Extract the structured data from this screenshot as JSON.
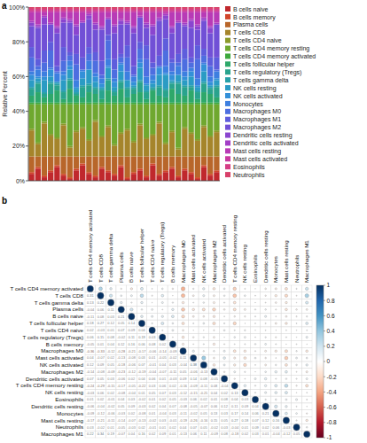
{
  "chart_data": [
    {
      "type": "bar",
      "title": "a",
      "stacked": true,
      "legend": "right",
      "y_label": "Relative Percent",
      "categories": [
        null,
        null,
        null,
        null,
        null,
        null,
        null,
        null,
        null,
        null,
        null,
        null,
        null,
        null,
        null,
        null,
        null,
        null,
        null,
        null,
        null,
        null,
        null,
        null,
        null,
        null,
        null,
        null,
        null,
        null
      ],
      "ylim": [
        0,
        100
      ],
      "yticks": [
        {
          "value": 0,
          "label": "0%"
        },
        {
          "value": 20,
          "label": "20%"
        },
        {
          "value": 40,
          "label": "40%"
        },
        {
          "value": 60,
          "label": "60%"
        },
        {
          "value": 80,
          "label": "80%"
        },
        {
          "value": 100,
          "label": "100%"
        }
      ],
      "series": [
        {
          "name": "B cells naive",
          "color": "#c0282d",
          "values": [
            4,
            7,
            2,
            5,
            8,
            3,
            1,
            6,
            9,
            4,
            2,
            7,
            5,
            3,
            8,
            1,
            4,
            6,
            2,
            9,
            3,
            5,
            7,
            2,
            6,
            4,
            1,
            8,
            3,
            5
          ]
        },
        {
          "name": "B cells memory",
          "color": "#d1452b",
          "values": [
            1,
            1,
            1,
            1,
            1,
            1,
            1,
            1,
            1,
            1,
            1,
            1,
            1,
            1,
            1,
            1,
            1,
            1,
            1,
            1,
            1,
            1,
            1,
            1,
            1,
            1,
            1,
            1,
            1,
            1
          ]
        },
        {
          "name": "Plasma cells",
          "color": "#b8662a",
          "values": [
            9,
            6,
            11,
            8,
            5,
            10,
            12,
            7,
            4,
            9,
            11,
            6,
            8,
            10,
            5,
            12,
            9,
            7,
            11,
            4,
            10,
            8,
            6,
            11,
            7,
            9,
            12,
            5,
            10,
            8
          ]
        },
        {
          "name": "T cells CD8",
          "color": "#a5852b",
          "values": [
            15,
            7,
            19,
            12,
            10,
            18,
            5,
            14,
            16,
            9,
            20,
            11,
            17,
            6,
            13,
            15,
            8,
            18,
            10,
            12,
            19,
            7,
            14,
            4,
            16,
            13,
            9,
            17,
            11,
            14
          ]
        },
        {
          "name": "T cells CD4 naive",
          "color": "#8b9a2a",
          "values": [
            1,
            1,
            1,
            1,
            1,
            1,
            1,
            1,
            1,
            1,
            1,
            1,
            1,
            1,
            1,
            1,
            1,
            1,
            1,
            1,
            1,
            1,
            1,
            1,
            1,
            1,
            1,
            1,
            1,
            1
          ]
        },
        {
          "name": "T cells CD4 memory resting",
          "color": "#6fa82f",
          "values": [
            14,
            22,
            10,
            17,
            19,
            11,
            24,
            15,
            13,
            20,
            9,
            18,
            12,
            23,
            16,
            14,
            21,
            11,
            19,
            17,
            10,
            22,
            15,
            25,
            13,
            16,
            20,
            12,
            18,
            15
          ]
        },
        {
          "name": "T cells CD4 memory activated",
          "color": "#3da83c",
          "values": [
            1,
            1,
            1,
            1,
            1,
            1,
            1,
            1,
            1,
            1,
            1,
            1,
            1,
            1,
            1,
            1,
            1,
            1,
            1,
            1,
            1,
            1,
            1,
            1,
            1,
            1,
            1,
            1,
            1,
            1
          ]
        },
        {
          "name": "T cells follicular helper",
          "color": "#2ea86a",
          "values": [
            4,
            6,
            3,
            5,
            7,
            2,
            8,
            4,
            3,
            6,
            5,
            2,
            7,
            4,
            8,
            3,
            5,
            6,
            2,
            7,
            4,
            3,
            8,
            5,
            4,
            7,
            2,
            6,
            5,
            3
          ]
        },
        {
          "name": "T cells regulatory (Tregs)",
          "color": "#29a38d",
          "values": [
            4,
            5,
            2,
            6,
            3,
            4,
            5,
            1,
            6,
            4,
            3,
            5,
            6,
            2,
            4,
            5,
            3,
            6,
            4,
            1,
            5,
            4,
            3,
            6,
            5,
            2,
            4,
            5,
            3,
            6
          ]
        },
        {
          "name": "T cells gamma delta",
          "color": "#27a0a8",
          "values": [
            1,
            1,
            1,
            1,
            1,
            1,
            1,
            1,
            1,
            1,
            1,
            1,
            1,
            1,
            1,
            1,
            1,
            1,
            1,
            1,
            1,
            1,
            1,
            1,
            1,
            1,
            1,
            1,
            1,
            1
          ]
        },
        {
          "name": "NK cells resting",
          "color": "#2a9bc4",
          "values": [
            4,
            2,
            7,
            3,
            1,
            6,
            5,
            2,
            4,
            8,
            3,
            1,
            6,
            2,
            5,
            4,
            1,
            7,
            3,
            2,
            6,
            8,
            1,
            4,
            3,
            5,
            2,
            6,
            1,
            3
          ]
        },
        {
          "name": "NK cells activated",
          "color": "#3390d8",
          "values": [
            3,
            1,
            2,
            4,
            0,
            3,
            2,
            1,
            4,
            0,
            3,
            2,
            1,
            3,
            4,
            0,
            2,
            3,
            1,
            2,
            4,
            1,
            3,
            0,
            2,
            3,
            1,
            4,
            2,
            1
          ]
        },
        {
          "name": "Monocytes",
          "color": "#3d7fe0",
          "values": [
            2,
            4,
            3,
            1,
            5,
            2,
            3,
            4,
            1,
            5,
            2,
            3,
            4,
            2,
            1,
            5,
            3,
            2,
            4,
            3,
            1,
            4,
            2,
            5,
            3,
            2,
            4,
            1,
            3,
            4
          ]
        },
        {
          "name": "Macrophages M0",
          "color": "#4d6ee0",
          "values": [
            8,
            2,
            5,
            10,
            1,
            6,
            3,
            9,
            0,
            4,
            7,
            2,
            11,
            5,
            3,
            8,
            1,
            6,
            10,
            4,
            0,
            9,
            5,
            2,
            7,
            3,
            11,
            4,
            6,
            1
          ]
        },
        {
          "name": "Macrophages M1",
          "color": "#5e5ddc",
          "values": [
            6,
            4,
            7,
            5,
            3,
            8,
            2,
            6,
            7,
            4,
            5,
            8,
            3,
            6,
            2,
            7,
            5,
            4,
            8,
            3,
            6,
            7,
            2,
            5,
            6,
            3,
            8,
            4,
            5,
            7
          ]
        },
        {
          "name": "Macrophages M2",
          "color": "#7150d6",
          "values": [
            12,
            18,
            15,
            10,
            19,
            14,
            17,
            11,
            20,
            16,
            13,
            18,
            9,
            15,
            17,
            12,
            19,
            14,
            10,
            16,
            20,
            11,
            15,
            18,
            13,
            17,
            9,
            16,
            14,
            19
          ]
        },
        {
          "name": "Dendritic cells resting",
          "color": "#8a45cf",
          "values": [
            2,
            1,
            4,
            0,
            3,
            2,
            1,
            5,
            0,
            2,
            3,
            1,
            0,
            4,
            2,
            1,
            3,
            0,
            2,
            5,
            1,
            2,
            3,
            0,
            1,
            4,
            2,
            1,
            3,
            0
          ]
        },
        {
          "name": "Dendritic cells activated",
          "color": "#a23ec6",
          "values": [
            1,
            1,
            1,
            1,
            1,
            1,
            1,
            1,
            1,
            1,
            1,
            1,
            1,
            1,
            1,
            1,
            1,
            1,
            1,
            1,
            1,
            1,
            1,
            1,
            1,
            1,
            1,
            1,
            1,
            1
          ]
        },
        {
          "name": "Mast cells resting",
          "color": "#b83ab6",
          "values": [
            5,
            7,
            2,
            6,
            8,
            3,
            4,
            7,
            5,
            1,
            6,
            8,
            3,
            7,
            4,
            5,
            8,
            2,
            6,
            7,
            3,
            1,
            8,
            5,
            6,
            4,
            7,
            3,
            8,
            6
          ]
        },
        {
          "name": "Mast cells activated",
          "color": "#c93aa0",
          "values": [
            1,
            1,
            1,
            1,
            1,
            1,
            1,
            1,
            1,
            1,
            1,
            1,
            1,
            1,
            1,
            1,
            1,
            1,
            1,
            1,
            1,
            1,
            1,
            1,
            1,
            1,
            1,
            1,
            1,
            1
          ]
        },
        {
          "name": "Eosinophils",
          "color": "#d53d85",
          "values": [
            1,
            1,
            1,
            1,
            1,
            1,
            1,
            1,
            1,
            1,
            1,
            1,
            1,
            1,
            1,
            1,
            1,
            1,
            1,
            1,
            1,
            1,
            1,
            1,
            1,
            1,
            1,
            1,
            1,
            1
          ]
        },
        {
          "name": "Neutrophils",
          "color": "#d8406a",
          "values": [
            1,
            1,
            1,
            1,
            1,
            1,
            1,
            1,
            1,
            1,
            1,
            1,
            1,
            1,
            1,
            1,
            1,
            1,
            1,
            1,
            1,
            1,
            1,
            1,
            1,
            1,
            1,
            1,
            1,
            1
          ]
        }
      ]
    },
    {
      "type": "corrplot",
      "title": "b",
      "categories": [
        "T cells CD4 memory activated",
        "T cells CD8",
        "T cells gamma delta",
        "Plasma cells",
        "B cells naive",
        "T cells follicular helper",
        "T cells CD4 naive",
        "T cells regulatory (Tregs)",
        "B cells memory",
        "Macrophages M0",
        "Mast cells activated",
        "NK cells activated",
        "Macrophages M2",
        "Dendritic cells activated",
        "T cells CD4 memory resting",
        "NK cells resting",
        "Eosinophils",
        "Dendritic cells resting",
        "Monocytes",
        "Mast cells resting",
        "Neutrophils",
        "Macrophages M1"
      ],
      "matrix": [
        [
          1
        ],
        [
          0.31,
          1
        ],
        [
          0.13,
          0.22,
          1
        ],
        [
          -0.04,
          0.06,
          0.11,
          1
        ],
        [
          -0.11,
          0.08,
          0.03,
          0.21,
          1
        ],
        [
          0.18,
          0.27,
          0.12,
          0.05,
          0.14,
          1
        ],
        [
          0.02,
          -0.03,
          0.01,
          0.07,
          0.09,
          0.04,
          1
        ],
        [
          0.06,
          0.15,
          0.08,
          -0.02,
          0.11,
          0.19,
          0.03,
          1
        ],
        [
          -0.05,
          0.01,
          0.04,
          0.12,
          0.16,
          0.06,
          0.08,
          0.02,
          1
        ],
        [
          -0.36,
          -0.33,
          -0.12,
          -0.28,
          -0.21,
          -0.17,
          -0.06,
          -0.14,
          -0.09,
          1
        ],
        [
          0.04,
          -0.07,
          0.02,
          -0.13,
          -0.08,
          0.03,
          0.01,
          -0.05,
          -0.02,
          0.11,
          1
        ],
        [
          0.12,
          0.09,
          0.05,
          -0.18,
          -0.06,
          0.07,
          -0.01,
          0.04,
          0.03,
          -0.04,
          0.38,
          1
        ],
        [
          -0.14,
          -0.08,
          -0.09,
          -0.23,
          -0.12,
          -0.19,
          -0.04,
          -0.07,
          -0.11,
          0.05,
          -0.06,
          -0.13,
          1
        ],
        [
          0.07,
          0.05,
          0.03,
          -0.06,
          0.02,
          0.04,
          0.06,
          0.01,
          -0.03,
          0.09,
          0.14,
          0.08,
          -0.05,
          1
        ],
        [
          -0.24,
          -0.29,
          -0.15,
          -0.17,
          -0.05,
          -0.22,
          0.03,
          0.06,
          0.02,
          -0.16,
          -0.09,
          -0.11,
          0.08,
          -0.04,
          1
        ],
        [
          -0.03,
          0.06,
          0.02,
          -0.08,
          -0.04,
          0.01,
          0.05,
          0.07,
          0.03,
          -0.12,
          -0.15,
          -0.21,
          0.04,
          0.02,
          0.13,
          1
        ],
        [
          0.01,
          0.02,
          -0.01,
          0.04,
          0.03,
          -0.02,
          0.01,
          0.02,
          0.05,
          -0.03,
          0.06,
          0.02,
          0.01,
          0.08,
          0.04,
          0.03,
          1
        ],
        [
          -0.06,
          -0.04,
          -0.02,
          0.05,
          0.09,
          -0.03,
          0.02,
          0.04,
          0.07,
          -0.08,
          -0.05,
          -0.07,
          0.06,
          0.12,
          0.11,
          0.09,
          0.04,
          1
        ],
        [
          -0.09,
          -0.12,
          -0.06,
          -0.03,
          0.02,
          -0.08,
          0.01,
          -0.04,
          0.03,
          -0.11,
          -0.02,
          0.05,
          0.13,
          0.03,
          0.17,
          0.14,
          0.06,
          0.21,
          1
        ],
        [
          -0.17,
          -0.21,
          -0.11,
          -0.14,
          -0.07,
          -0.13,
          -0.02,
          0.03,
          -0.01,
          -0.19,
          -0.26,
          -0.16,
          0.15,
          0.05,
          0.27,
          0.18,
          0.07,
          0.12,
          0.16,
          1
        ],
        [
          0.03,
          -0.02,
          0.01,
          -0.05,
          -0.03,
          0.02,
          -0.01,
          0.01,
          0.02,
          0.04,
          0.07,
          0.05,
          -0.02,
          0.03,
          -0.04,
          0.01,
          0.09,
          0.02,
          0.06,
          -0.03,
          1
        ],
        [
          0.22,
          0.34,
          0.19,
          -0.07,
          0.04,
          0.16,
          0.02,
          0.09,
          0.01,
          -0.13,
          0.06,
          0.11,
          -0.09,
          0.08,
          -0.18,
          0.02,
          0.03,
          0.01,
          -0.04,
          -0.12,
          0.05,
          1
        ]
      ],
      "colorbar": {
        "range": [
          -1,
          1
        ],
        "ticks": [
          1,
          0.8,
          0.6,
          0.4,
          0.2,
          0,
          -0.2,
          -0.4,
          -0.6,
          -0.8,
          -1
        ]
      }
    }
  ]
}
